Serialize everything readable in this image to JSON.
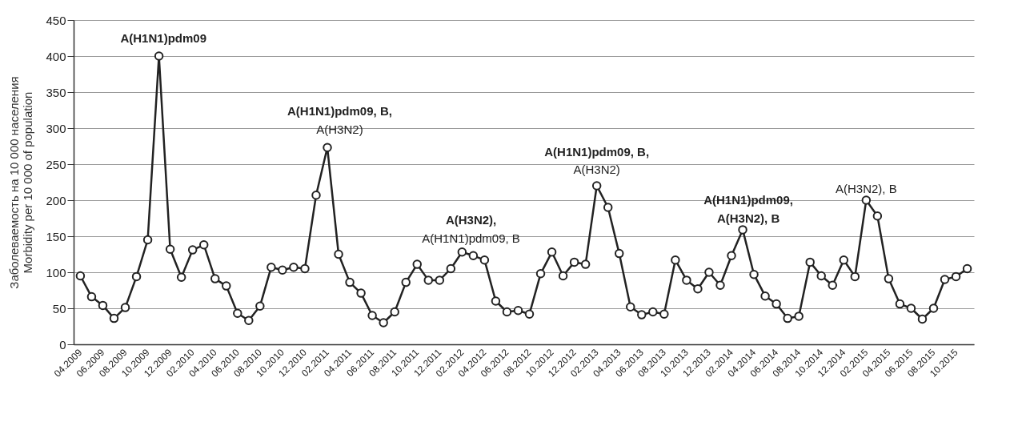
{
  "chart_data": {
    "type": "line",
    "ylabel": "Заболеваемость на 10 000 населения\nMorbidity per 10 000 of population",
    "categories": [
      "04.2009",
      null,
      "06.2009",
      null,
      "08.2009",
      null,
      "10.2009",
      null,
      "12.2009",
      null,
      "02.2010",
      null,
      "04.2010",
      null,
      "06.2010",
      null,
      "08.2010",
      null,
      "10.2010",
      null,
      "12.2010",
      null,
      "02.2011",
      null,
      "04.2011",
      null,
      "06.2011",
      null,
      "08.2011",
      null,
      "10.2011",
      null,
      "12.2011",
      null,
      "02.2012",
      null,
      "04.2012",
      null,
      "06.2012",
      null,
      "08.2012",
      null,
      "10.2012",
      null,
      "12.2012",
      null,
      "02.2013",
      null,
      "04.2013",
      null,
      "06.2013",
      null,
      "08.2013",
      null,
      "10.2013",
      null,
      "12.2013",
      null,
      "02.2014",
      null,
      "04.2014",
      null,
      "06.2014",
      null,
      "08.2014",
      null,
      "10.2014",
      null,
      "12.2014",
      null,
      "02.2015",
      null,
      "04.2015",
      null,
      "06.2015",
      null,
      "08.2015",
      null,
      "10.2015",
      null
    ],
    "series": [
      {
        "color": "#222222",
        "values": [
          95,
          66,
          54,
          36,
          51,
          94,
          145,
          400,
          132,
          93,
          131,
          138,
          91,
          81,
          43,
          33,
          53,
          107,
          103,
          107,
          105,
          207,
          273,
          125,
          86,
          71,
          40,
          30,
          45,
          86,
          111,
          89,
          89,
          105,
          128,
          123,
          117,
          60,
          45,
          47,
          42,
          98,
          128,
          95,
          114,
          111,
          220,
          190,
          126,
          52,
          41,
          45,
          42,
          117,
          89,
          77,
          100,
          82,
          123,
          159,
          97,
          67,
          56,
          36,
          39,
          114,
          95,
          82,
          117,
          94,
          200,
          178,
          91,
          56,
          50,
          35,
          50,
          90,
          94,
          105
        ]
      }
    ],
    "ylim": [
      0,
      450
    ],
    "yticks": [
      0,
      50,
      100,
      150,
      200,
      250,
      300,
      350,
      400,
      450
    ],
    "grid": "y",
    "marker": "circle",
    "line_style": "solid",
    "annotations": [
      "A(H1N1)pdm09",
      "A(H1N1)pdm09, B,\nA(H3N2)",
      "A(H3N2),\nA(H1N1)pdm09, B",
      "A(H1N1)pdm09, B,\nA(H3N2)",
      "A(H1N1)pdm09,\nA(H3N2), B",
      "A(H3N2), B"
    ]
  }
}
